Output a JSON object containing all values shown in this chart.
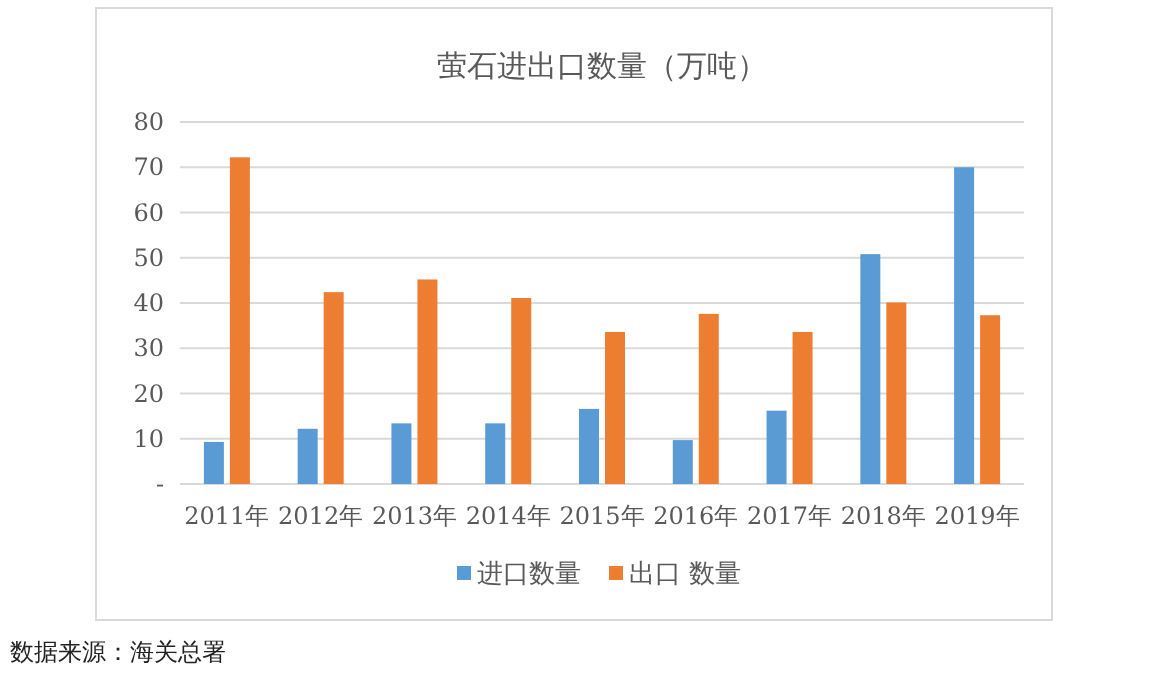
{
  "chart_data": {
    "type": "bar",
    "title": "萤石进出口数量（万吨）",
    "categories": [
      "2011年",
      "2012年",
      "2013年",
      "2014年",
      "2015年",
      "2016年",
      "2017年",
      "2018年",
      "2019年"
    ],
    "series": [
      {
        "name": "进口数量",
        "color": "#5b9bd5",
        "values": [
          9.3,
          12.2,
          13.4,
          13.4,
          16.6,
          9.7,
          16.2,
          50.8,
          70.0
        ]
      },
      {
        "name": "出口 数量",
        "color": "#ed7d31",
        "values": [
          72.2,
          42.4,
          45.2,
          41.1,
          33.6,
          37.6,
          33.6,
          40.1,
          37.3
        ]
      }
    ],
    "ylim": [
      0,
      80
    ],
    "yticks": [
      {
        "value": 0,
        "label": "-"
      },
      10,
      20,
      30,
      40,
      50,
      60,
      70,
      80
    ],
    "grid": "y",
    "legend": "bottom",
    "annotations": [
      "数据来源：海关总署"
    ]
  }
}
